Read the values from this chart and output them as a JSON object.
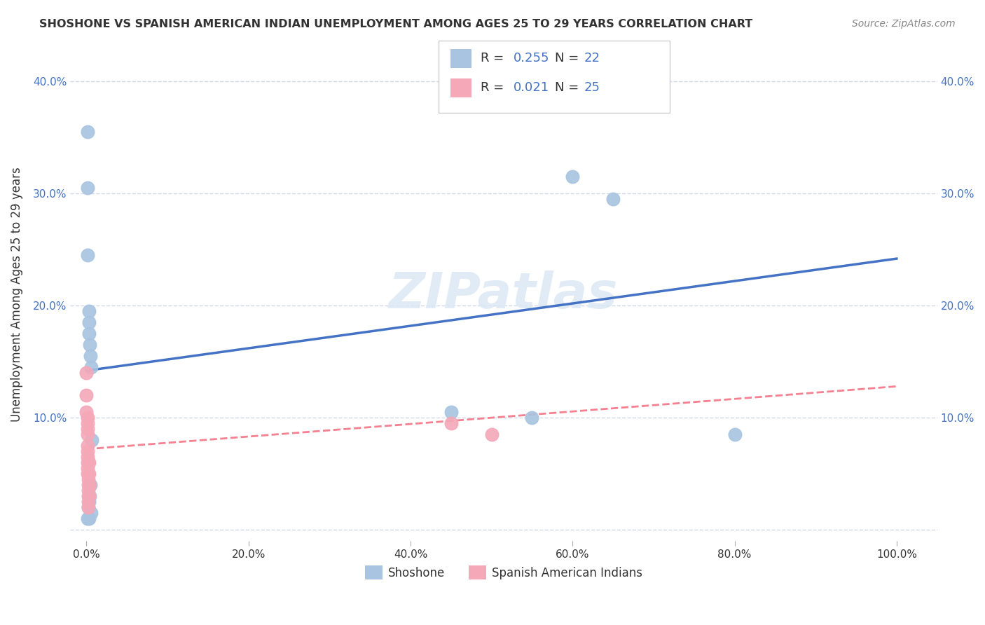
{
  "title": "SHOSHONE VS SPANISH AMERICAN INDIAN UNEMPLOYMENT AMONG AGES 25 TO 29 YEARS CORRELATION CHART",
  "source": "Source: ZipAtlas.com",
  "ylabel": "Unemployment Among Ages 25 to 29 years",
  "shoshone_R": "0.255",
  "shoshone_N": "22",
  "spanish_R": "0.021",
  "spanish_N": "25",
  "shoshone_color": "#a8c4e0",
  "spanish_color": "#f4a8b8",
  "shoshone_line_color": "#4472c4",
  "spanish_line_color": "#f48090",
  "shoshone_scatter": [
    [
      0.001,
      0.355
    ],
    [
      0.001,
      0.305
    ],
    [
      0.001,
      0.245
    ],
    [
      0.003,
      0.195
    ],
    [
      0.003,
      0.185
    ],
    [
      0.003,
      0.175
    ],
    [
      0.004,
      0.165
    ],
    [
      0.005,
      0.155
    ],
    [
      0.006,
      0.145
    ],
    [
      0.007,
      0.08
    ],
    [
      0.45,
      0.105
    ],
    [
      0.55,
      0.1
    ],
    [
      0.6,
      0.315
    ],
    [
      0.65,
      0.295
    ],
    [
      0.8,
      0.085
    ],
    [
      0.001,
      0.01
    ],
    [
      0.003,
      0.01
    ],
    [
      0.005,
      0.04
    ],
    [
      0.002,
      0.02
    ],
    [
      0.003,
      0.025
    ],
    [
      0.004,
      0.03
    ],
    [
      0.006,
      0.015
    ]
  ],
  "spanish_scatter": [
    [
      0.0,
      0.14
    ],
    [
      0.0,
      0.12
    ],
    [
      0.0,
      0.105
    ],
    [
      0.001,
      0.1
    ],
    [
      0.001,
      0.095
    ],
    [
      0.001,
      0.09
    ],
    [
      0.001,
      0.085
    ],
    [
      0.001,
      0.075
    ],
    [
      0.001,
      0.07
    ],
    [
      0.001,
      0.065
    ],
    [
      0.001,
      0.06
    ],
    [
      0.001,
      0.055
    ],
    [
      0.001,
      0.05
    ],
    [
      0.002,
      0.045
    ],
    [
      0.002,
      0.04
    ],
    [
      0.002,
      0.035
    ],
    [
      0.002,
      0.03
    ],
    [
      0.002,
      0.025
    ],
    [
      0.002,
      0.02
    ],
    [
      0.003,
      0.06
    ],
    [
      0.003,
      0.05
    ],
    [
      0.003,
      0.03
    ],
    [
      0.004,
      0.04
    ],
    [
      0.45,
      0.095
    ],
    [
      0.5,
      0.085
    ]
  ],
  "shoshone_trendline": [
    [
      0.0,
      0.142
    ],
    [
      1.0,
      0.242
    ]
  ],
  "spanish_trendline": [
    [
      0.0,
      0.072
    ],
    [
      1.0,
      0.128
    ]
  ],
  "xlim": [
    -0.02,
    1.05
  ],
  "ylim": [
    -0.01,
    0.43
  ],
  "xticks": [
    0.0,
    0.2,
    0.4,
    0.6,
    0.8,
    1.0
  ],
  "xticklabels": [
    "0.0%",
    "20.0%",
    "40.0%",
    "60.0%",
    "80.0%",
    "100.0%"
  ],
  "yticks": [
    0.0,
    0.1,
    0.2,
    0.3,
    0.4
  ],
  "yticklabels_left": [
    "",
    "10.0%",
    "20.0%",
    "30.0%",
    "40.0%"
  ],
  "yticklabels_right": [
    "",
    "10.0%",
    "20.0%",
    "30.0%",
    "40.0%"
  ],
  "background_color": "#ffffff",
  "grid_color": "#d0d8e8",
  "watermark": "ZIPatlas",
  "text_blue_color": "#4472c4"
}
